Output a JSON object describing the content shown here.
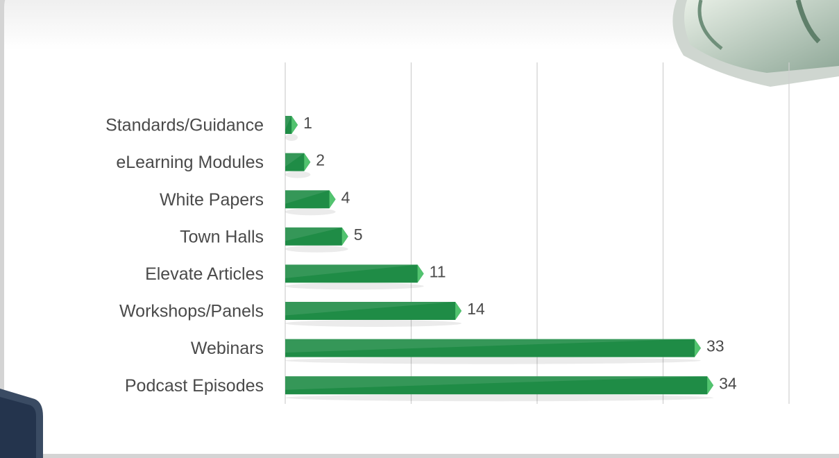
{
  "chart_data": {
    "type": "bar",
    "orientation": "horizontal",
    "categories": [
      "Standards/Guidance",
      "eLearning Modules",
      "White Papers",
      "Town Halls",
      "Elevate Articles",
      "Workshops/Panels",
      "Webinars",
      "Podcast Episodes"
    ],
    "values": [
      1,
      2,
      4,
      5,
      11,
      14,
      33,
      34
    ],
    "color": "#1f8c46",
    "xlim": [
      0,
      40
    ],
    "xticks": [
      0,
      10,
      20,
      30,
      40
    ],
    "grid": true
  }
}
